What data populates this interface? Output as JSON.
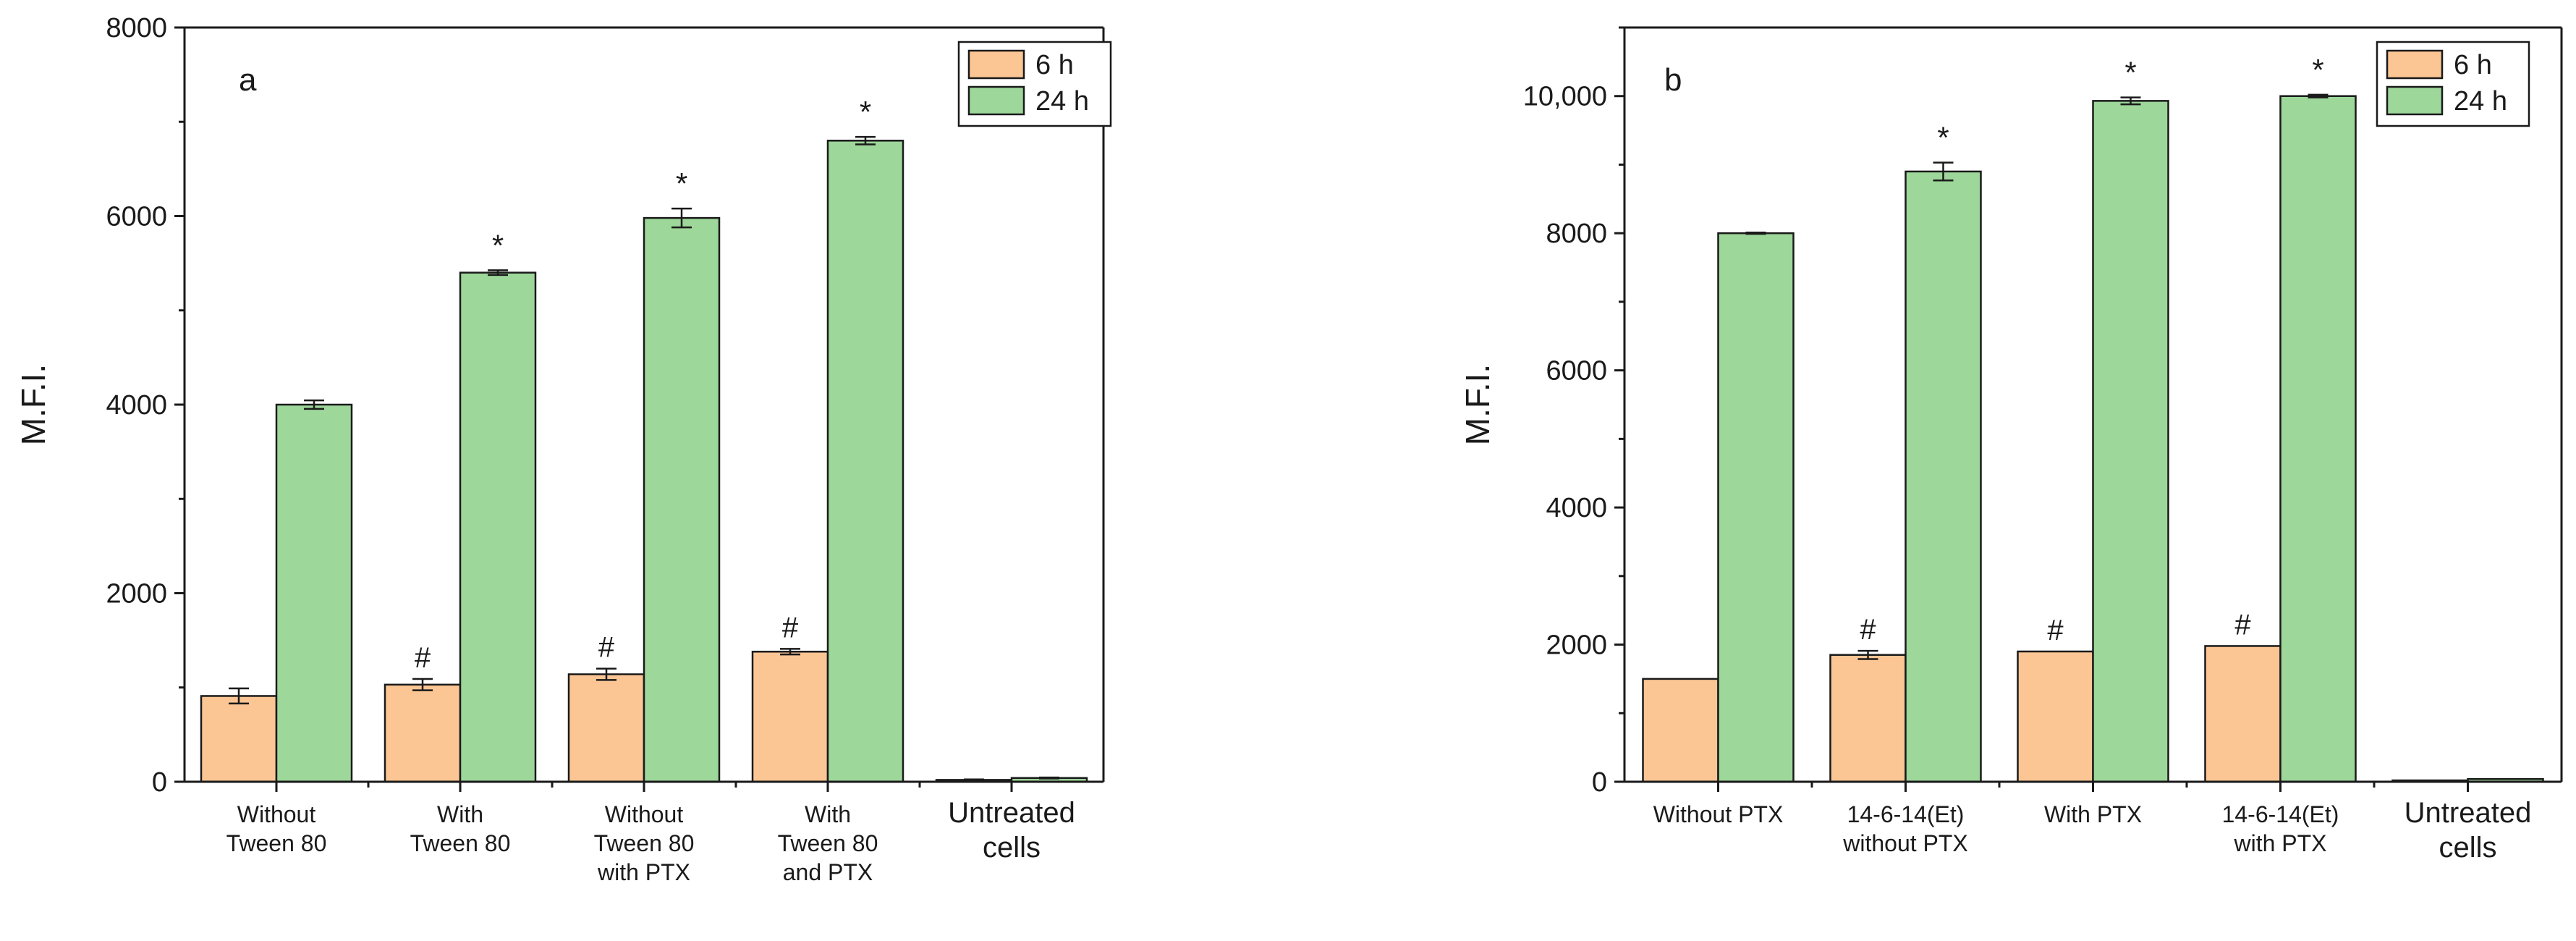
{
  "colors": {
    "series_6h": "#fbc594",
    "series_24h": "#9dd79a",
    "axis": "#1a1a1a"
  },
  "chart_data": [
    {
      "type": "bar",
      "panel_label": "a",
      "title": "",
      "xlabel": "",
      "ylabel": "M.F.I.",
      "ylim": [
        0,
        8000
      ],
      "yticks": [
        0,
        2000,
        4000,
        6000,
        8000
      ],
      "ytick_labels": [
        "0",
        "2000",
        "4000",
        "6000",
        "8000"
      ],
      "legend_position": "top-right",
      "categories": [
        [
          "Without",
          "Tween 80"
        ],
        [
          "With",
          "Tween 80"
        ],
        [
          "Without",
          "Tween 80",
          "with PTX"
        ],
        [
          "With",
          "Tween 80",
          "and PTX"
        ],
        [
          "Untreated",
          "cells"
        ]
      ],
      "series": [
        {
          "name": "6 h",
          "values": [
            910,
            1030,
            1140,
            1380,
            20
          ],
          "errors": [
            80,
            60,
            60,
            30,
            5
          ],
          "annotations": [
            "",
            "#",
            "#",
            "#",
            ""
          ]
        },
        {
          "name": "24 h",
          "values": [
            4000,
            5400,
            5980,
            6800,
            40
          ],
          "errors": [
            45,
            25,
            100,
            40,
            5
          ],
          "annotations": [
            "",
            "*",
            "*",
            "*",
            ""
          ]
        }
      ]
    },
    {
      "type": "bar",
      "panel_label": "b",
      "title": "",
      "xlabel": "",
      "ylabel": "M.F.I.",
      "ylim": [
        0,
        11000
      ],
      "yticks": [
        0,
        2000,
        4000,
        6000,
        8000,
        10000
      ],
      "ytick_labels": [
        "0",
        "2000",
        "4000",
        "6000",
        "8000",
        "10,000"
      ],
      "legend_position": "top-right",
      "categories": [
        [
          "Without PTX"
        ],
        [
          "14-6-14(Et)",
          "without PTX"
        ],
        [
          "With PTX"
        ],
        [
          "14-6-14(Et)",
          "with PTX"
        ],
        [
          "Untreated",
          "cells"
        ]
      ],
      "series": [
        {
          "name": "6 h",
          "values": [
            1500,
            1850,
            1900,
            1980,
            20
          ],
          "errors": [
            0,
            60,
            0,
            0,
            0
          ],
          "annotations": [
            "",
            "#",
            "#",
            "#",
            ""
          ]
        },
        {
          "name": "24 h",
          "values": [
            8000,
            8900,
            9930,
            10000,
            40
          ],
          "errors": [
            10,
            130,
            50,
            20,
            0
          ],
          "annotations": [
            "",
            "*",
            "*",
            "*",
            ""
          ]
        }
      ]
    }
  ]
}
